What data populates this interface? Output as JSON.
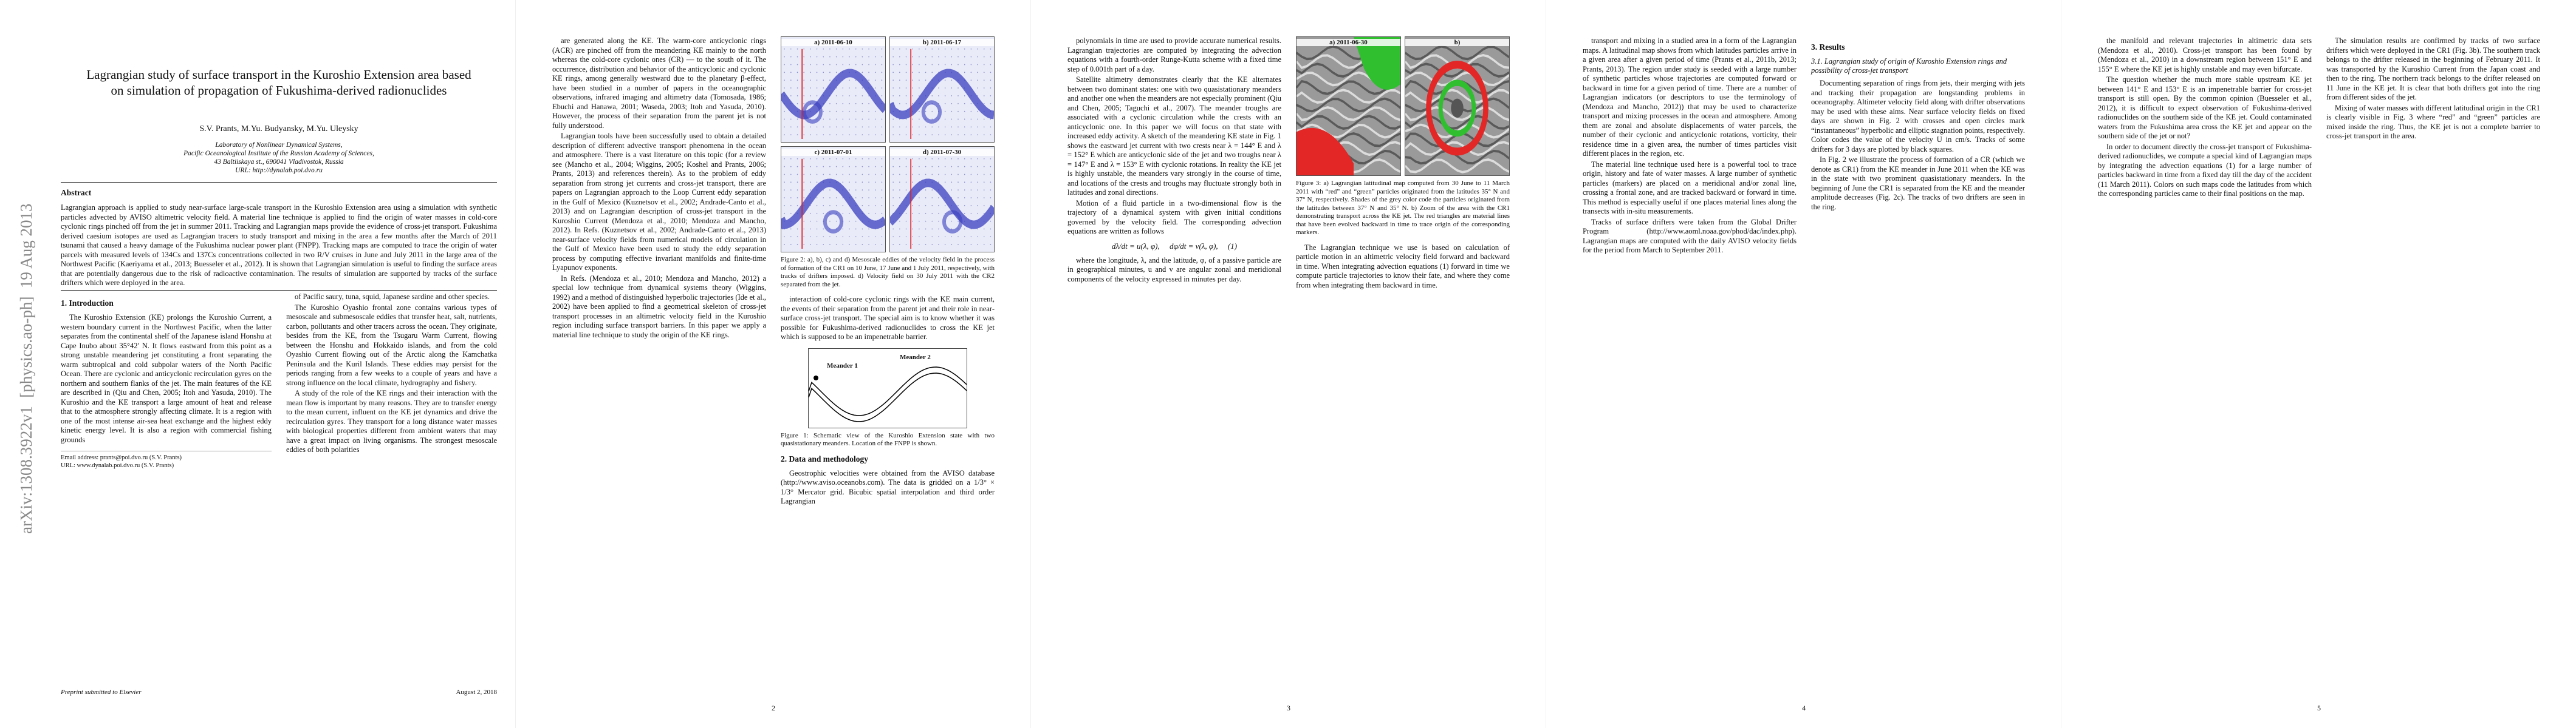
{
  "arxiv_stamp": "arXiv:1308.3922v1  [physics.ao-ph]  19 Aug 2013",
  "pages": [
    {
      "header": {
        "title": "Lagrangian study of surface transport in the Kuroshio Extension area based on simulation of propagation of Fukushima-derived radionuclides",
        "authors": "S.V. Prants, M.Yu. Budyansky, M.Yu. Uleysky",
        "affiliation": [
          "Laboratory of Nonlinear Dynamical Systems,",
          "Pacific Oceanological Institute of the Russian Academy of Sciences,",
          "43 Baltiiskaya st., 690041 Vladivostok, Russia",
          "URL: http://dynalab.poi.dvo.ru"
        ],
        "abstract_heading": "Abstract",
        "abstract": "Lagrangian approach is applied to study near-surface large-scale transport in the Kuroshio Extension area using a simulation with synthetic particles advected by AVISO altimetric velocity field. A material line technique is applied to find the origin of water masses in cold-core cyclonic rings pinched off from the jet in summer 2011. Tracking and Lagrangian maps provide the evidence of cross-jet transport. Fukushima derived caesium isotopes are used as Lagrangian tracers to study transport and mixing in the area a few months after the March of 2011 tsunami that caused a heavy damage of the Fukushima nuclear power plant (FNPP). Tracking maps are computed to trace the origin of water parcels with measured levels of 134Cs and 137Cs concentrations collected in two R/V cruises in June and July 2011 in the large area of the Northwest Pacific (Kaeriyama et al., 2013; Buesseler et al., 2012). It is shown that Lagrangian simulation is useful to finding the surface areas that are potentially dangerous due to the risk of radioactive contamination. The results of simulation are supported by tracks of the surface drifters which were deployed in the area."
      },
      "columns": [
        [
          {
            "heading": "1. Introduction"
          },
          {
            "text": "The Kuroshio Extension (KE) prolongs the Kuroshio Current, a western boundary current in the Northwest Pacific, when the latter separates from the continental shelf of the Japanese island Honshu at Cape Inubo about 35°42′ N. It flows eastward from this point as a strong unstable meandering jet constituting a front separating the warm subtropical and cold subpolar waters of the North Pacific Ocean. There are cyclonic and anticyclonic recirculation gyres on the northern and southern flanks of the jet. The main features of the KE are described in (Qiu and Chen, 2005; Itoh and Yasuda, 2010). The Kuroshio and the KE transport a large amount of heat and release that to the atmosphere strongly affecting climate. It is a region with one of the most intense air-sea heat exchange and the highest eddy kinetic energy level. It is also a region with commercial fishing grounds"
          },
          {
            "note": "Email address: prants@poi.dvo.ru (S.V. Prants)"
          },
          {
            "note": "URL: www.dynalab.poi.dvo.ru (S.V. Prants)"
          }
        ],
        [
          {
            "text": "of Pacific saury, tuna, squid, Japanese sardine and other species."
          },
          {
            "text": "The Kuroshio Oyashio frontal zone contains various types of mesoscale and submesoscale eddies that transfer heat, salt, nutrients, carbon, pollutants and other tracers across the ocean. They originate, besides from the KE, from the Tsugaru Warm Current, flowing between the Honshu and Hokkaido islands, and from the cold Oyashio Current flowing out of the Arctic along the Kamchatka Peninsula and the Kuril Islands. These eddies may persist for the periods ranging from a few weeks to a couple of years and have a strong influence on the local climate, hydrography and fishery."
          },
          {
            "text": "A study of the role of the KE rings and their interaction with the mean flow is important by many reasons. They are to transfer energy to the mean current, influent on the KE jet dynamics and drive the recirculation gyres. They transport for a long distance water masses with biological properties different from ambient waters that may have a great impact on living organisms. The strongest mesoscale eddies of both polarities"
          }
        ]
      ],
      "footer_left": "Preprint submitted to Elsevier",
      "footer_right": "August 2, 2018"
    },
    {
      "columns": [
        [
          {
            "text": "are generated along the KE. The warm-core anticyclonic rings (ACR) are pinched off from the meandering KE mainly to the north whereas the cold-core cyclonic ones (CR) — to the south of it. The occurrence, distribution and behavior of the anticyclonic and cyclonic KE rings, among generally westward due to the planetary β-effect, have been studied in a number of papers in the oceanographic observations, infrared imaging and altimetry data (Tomosada, 1986; Ebuchi and Hanawa, 2001; Waseda, 2003; Itoh and Yasuda, 2010). However, the process of their separation from the parent jet is not fully understood."
          },
          {
            "text": "Lagrangian tools have been successfully used to obtain a detailed description of different advective transport phenomena in the ocean and atmosphere. There is a vast literature on this topic (for a review see (Mancho et al., 2004; Wiggins, 2005; Koshel and Prants, 2006; Prants, 2013) and references therein). As to the problem of eddy separation from strong jet currents and cross-jet transport, there are papers on Lagrangian approach to the Loop Current eddy separation in the Gulf of Mexico (Kuznetsov et al., 2002; Andrade-Canto et al., 2013) and on Lagrangian description of cross-jet transport in the Kuroshio Current (Mendoza et al., 2010; Mendoza and Mancho, 2012). In Refs. (Kuznetsov et al., 2002; Andrade-Canto et al., 2013) near-surface velocity fields from numerical models of circulation in the Gulf of Mexico have been used to study the eddy separation process by computing effective invariant manifolds and finite-time Lyapunov exponents."
          },
          {
            "text": "In Refs. (Mendoza et al., 2010; Mendoza and Mancho, 2012) a special low technique from dynamical systems theory (Wiggins, 1992) and a method of distinguished hyperbolic trajectories (Ide et al., 2002) have been applied to find a geometrical skeleton of cross-jet transport processes in an altimetric velocity field in the Kuroshio region including surface transport barriers. In this paper we apply a material line technique to study the origin of the KE rings."
          }
        ],
        [
          {
            "figure": [
              "a) 2011-06-10",
              "b) 2011-06-17",
              "c) 2011-07-01",
              "d) 2011-07-30"
            ]
          },
          {
            "caption": "Figure 2: a), b), c) and d) Mesoscale eddies of the velocity field in the process of formation of the CR1 on 10 June, 17 June and 1 July 2011, respectively, with tracks of drifters imposed. d) Velocity field on 30 July 2011 with the CR2 separated from the jet."
          },
          {
            "text": "interaction of cold-core cyclonic rings with the KE main current, the events of their separation from the parent jet and their role in near-surface cross-jet transport. The special aim is to know whether it was possible for Fukushima-derived radionuclides to cross the KE jet which is supposed to be an impenetrable barrier."
          },
          {
            "schematic": [
              "Meander 1",
              "Meander 2"
            ]
          },
          {
            "caption": "Figure 1: Schematic view of the Kuroshio Extension state with two quasistationary meanders. Location of the FNPP is shown."
          },
          {
            "heading": "2. Data and methodology"
          },
          {
            "text": "Geostrophic velocities were obtained from the AVISO database (http://www.aviso.oceanobs.com). The data is gridded on a 1/3° × 1/3° Mercator grid. Bicubic spatial interpolation and third order Lagrangian"
          }
        ]
      ],
      "page_number": "2"
    },
    {
      "columns": [
        [
          {
            "text": "polynomials in time are used to provide accurate numerical results. Lagrangian trajectories are computed by integrating the advection equations with a fourth-order Runge-Kutta scheme with a fixed time step of 0.001th part of a day."
          },
          {
            "text": "Satellite altimetry demonstrates clearly that the KE alternates between two dominant states: one with two quasistationary meanders and another one when the meanders are not especially prominent (Qiu and Chen, 2005; Taguchi et al., 2007). The meander troughs are associated with a cyclonic circulation while the crests with an anticyclonic one. In this paper we will focus on that state with increased eddy activity. A sketch of the meandering KE state in Fig. 1 shows the eastward jet current with two crests near λ = 144° E and λ = 152° E which are anticyclonic side of the jet and two troughs near λ = 147° E and λ = 153° E with cyclonic rotations. In reality the KE jet is highly unstable, the meanders vary strongly in the course of time, and locations of the crests and troughs may fluctuate strongly both in latitudes and zonal directions."
          },
          {
            "text": "Motion of a fluid particle in a two-dimensional flow is the trajectory of a dynamical system with given initial conditions governed by the velocity field. The corresponding advection equations are written as follows"
          },
          {
            "equation": "dλ/dt = u(λ, φ),     dφ/dt = v(λ, φ),     (1)"
          },
          {
            "text": "where the longitude, λ, and the latitude, φ, of a passive particle are in geographical minutes, u and v are angular zonal and meridional components of the velocity expressed in minutes per day."
          }
        ],
        [
          {
            "figure": [
              "a) 2011-06-30",
              "b)"
            ]
          },
          {
            "caption": "Figure 3: a) Lagrangian latitudinal map computed from 30 June to 11 March 2011 with “red” and “green” particles originated from the latitudes 35° N and 37° N, respectively. Shades of the grey color code the particles originated from the latitudes between 37° N and 35° N. b) Zoom of the area with the CR1 demonstrating transport across the KE jet. The red triangles are material lines that have been evolved backward in time to trace origin of the corresponding markers."
          },
          {
            "text": "The Lagrangian technique we use is based on calculation of particle motion in an altimetric velocity field forward and backward in time. When integrating advection equations (1) forward in time we compute particle trajectories to know their fate, and where they come from when integrating them backward in time."
          }
        ]
      ],
      "page_number": "3"
    },
    {
      "columns": [
        [
          {
            "text": "transport and mixing in a studied area in a form of the Lagrangian maps. A latitudinal map shows from which latitudes particles arrive in a given area after a given period of time (Prants et al., 2011b, 2013; Prants, 2013). The region under study is seeded with a large number of synthetic particles whose trajectories are computed forward or backward in time for a given period of time. There are a number of Lagrangian indicators (or descriptors to use the terminology of (Mendoza and Mancho, 2012)) that may be used to characterize transport and mixing processes in the ocean and atmosphere. Among them are zonal and absolute displacements of water parcels, the number of their cyclonic and anticyclonic rotations, vorticity, their residence time in a given area, the number of times particles visit different places in the region, etc."
          },
          {
            "text": "The material line technique used here is a powerful tool to trace origin, history and fate of water masses. A large number of synthetic particles (markers) are placed on a meridional and/or zonal line, crossing a frontal zone, and are tracked backward or forward in time. This method is especially useful if one places material lines along the transects with in-situ measurements."
          },
          {
            "text": "Tracks of surface drifters were taken from the Global Drifter Program (http://www.aoml.noaa.gov/phod/dac/index.php). Lagrangian maps are computed with the daily AVISO velocity fields for the period from March to September 2011."
          }
        ],
        [
          {
            "heading": "3. Results"
          },
          {
            "subheading": "3.1. Lagrangian study of origin of Kuroshio Extension rings and possibility of cross-jet transport"
          },
          {
            "text": "Documenting separation of rings from jets, their merging with jets and tracking their propagation are longstanding problems in oceanography. Altimeter velocity field along with drifter observations may be used with these aims. Near surface velocity fields on fixed days are shown in Fig. 2 with crosses and open circles mark “instantaneous” hyperbolic and elliptic stagnation points, respectively. Color codes the value of the velocity U in cm/s. Tracks of some drifters for 3 days are plotted by black squares."
          },
          {
            "text": "In Fig. 2 we illustrate the process of formation of a CR (which we denote as CR1) from the KE meander in June 2011 when the KE was in the state with two prominent quasistationary meanders. In the beginning of June the CR1 is separated from the KE and the meander amplitude decreases (Fig. 2c). The tracks of two drifters are seen in the ring."
          }
        ]
      ],
      "page_number": "4"
    },
    {
      "columns": [
        [
          {
            "text": "the manifold and relevant trajectories in altimetric data sets (Mendoza et al., 2010). Cross-jet transport has been found by (Mendoza et al., 2010) in a downstream region between 151° E and 155° E where the KE jet is highly unstable and may even bifurcate."
          },
          {
            "text": "The question whether the much more stable upstream KE jet between 141° E and 153° E is an impenetrable barrier for cross-jet transport is still open. By the common opinion (Buesseler et al., 2012), it is difficult to expect observation of Fukushima-derived radionuclides on the southern side of the KE jet. Could contaminated waters from the Fukushima area cross the KE jet and appear on the southern side of the jet or not?"
          },
          {
            "text": "In order to document directly the cross-jet transport of Fukushima-derived radionuclides, we compute a special kind of Lagrangian maps by integrating the advection equations (1) for a large number of particles backward in time from a fixed day till the day of the accident (11 March 2011). Colors on such maps code the latitudes from which the corresponding particles came to their final positions on the map."
          }
        ],
        [
          {
            "text": "The simulation results are confirmed by tracks of two surface drifters which were deployed in the CR1 (Fig. 3b). The southern track belongs to the drifter released in the beginning of February 2011. It was transported by the Kuroshio Current from the Japan coast and then to the ring. The northern track belongs to the drifter released on 11 June in the KE jet. It is clear that both drifters got into the ring from different sides of the jet."
          },
          {
            "text": "Mixing of water masses with different latitudinal origin in the CR1 is clearly visible in Fig. 3 where “red” and “green” particles are mixed inside the ring. Thus, the KE jet is not a complete barrier to cross-jet transport in the area."
          }
        ]
      ],
      "page_number": "5"
    }
  ]
}
